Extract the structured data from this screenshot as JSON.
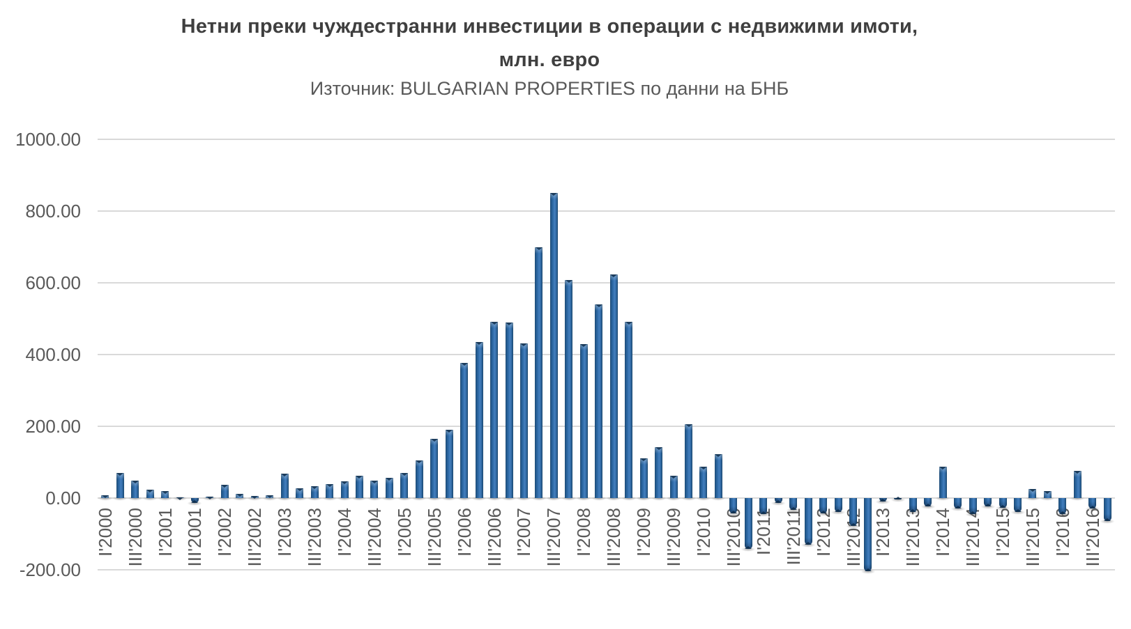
{
  "title": {
    "line1": "Нетни преки чуждестранни инвестиции в операции с недвижими имоти,",
    "line2": "млн. евро"
  },
  "subtitle": "Източник: BULGARIAN PROPERTIES по данни на БНБ",
  "colors": {
    "bar": "#2F6CA9",
    "bar_edge_dark": "#1A4872",
    "bar_highlight": "#447FBE",
    "gridline": "#D9D9D9",
    "axis_labels": "#595959",
    "title_text": "#3F3F3F",
    "subtitle_text": "#595959",
    "background": "#FFFFFF"
  },
  "y_axis": {
    "ticks": [
      1000,
      800,
      600,
      400,
      200,
      0,
      -200
    ],
    "tick_labels": [
      "1000.00",
      "800.00",
      "600.00",
      "400.00",
      "200.00",
      "0.00",
      "-200.00"
    ]
  },
  "x_axis": {
    "label_every_n": 2,
    "shown_labels": [
      "I'2000",
      "III'2000",
      "I'2001",
      "III'2001",
      "I'2002",
      "III'2002",
      "I'2003",
      "III'2003",
      "I'2004",
      "III'2004",
      "I'2005",
      "III'2005",
      "I'2006",
      "III'2006",
      "I'2007",
      "III'2007",
      "I'2008",
      "III'2008",
      "I'2009",
      "III'2009",
      "I'2010",
      "III'2010",
      "I'2011",
      "III'2011",
      "I'2012",
      "III'2012",
      "I'2013",
      "III'2013",
      "I'2014",
      "III'2014",
      "I'2015",
      "III'2015",
      "I'2016",
      "III'2016"
    ]
  },
  "chart_data": {
    "type": "bar",
    "title": "Нетни преки чуждестранни инвестиции в операции с недвижими имоти, млн. евро",
    "subtitle": "Източник: BULGARIAN PROPERTIES по данни на БНБ",
    "xlabel": "",
    "ylabel": "млн. евро",
    "ylim": [
      -200,
      1000
    ],
    "grid": true,
    "legend": false,
    "categories": [
      "I'2000",
      "II'2000",
      "III'2000",
      "IV'2000",
      "I'2001",
      "II'2001",
      "III'2001",
      "IV'2001",
      "I'2002",
      "II'2002",
      "III'2002",
      "IV'2002",
      "I'2003",
      "II'2003",
      "III'2003",
      "IV'2003",
      "I'2004",
      "II'2004",
      "III'2004",
      "IV'2004",
      "I'2005",
      "II'2005",
      "III'2005",
      "IV'2005",
      "I'2006",
      "II'2006",
      "III'2006",
      "IV'2006",
      "I'2007",
      "II'2007",
      "III'2007",
      "IV'2007",
      "I'2008",
      "II'2008",
      "III'2008",
      "IV'2008",
      "I'2009",
      "II'2009",
      "III'2009",
      "IV'2009",
      "I'2010",
      "II'2010",
      "III'2010",
      "IV'2010",
      "I'2011",
      "II'2011",
      "III'2011",
      "IV'2011",
      "I'2012",
      "II'2012",
      "III'2012",
      "IV'2012",
      "I'2013",
      "II'2013",
      "III'2013",
      "IV'2013",
      "I'2014",
      "II'2014",
      "III'2014",
      "IV'2014",
      "I'2015",
      "II'2015",
      "III'2015",
      "IV'2015",
      "I'2016",
      "II'2016",
      "III'2016",
      "IV'2016"
    ],
    "values": [
      8,
      70,
      48,
      24,
      19,
      2,
      -13,
      4,
      36,
      12,
      6,
      7,
      68,
      28,
      33,
      38,
      46,
      63,
      49,
      57,
      69,
      104,
      165,
      191,
      377,
      434,
      491,
      489,
      431,
      700,
      850,
      608,
      430,
      539,
      624,
      491,
      110,
      142,
      63,
      206,
      87,
      123,
      -42,
      -141,
      -44,
      -13,
      -33,
      -131,
      -42,
      -39,
      -77,
      -204,
      -10,
      -2,
      -39,
      -23,
      87,
      -29,
      -45,
      -23,
      -28,
      -39,
      25,
      20,
      -44,
      75,
      -29,
      -65
    ]
  }
}
